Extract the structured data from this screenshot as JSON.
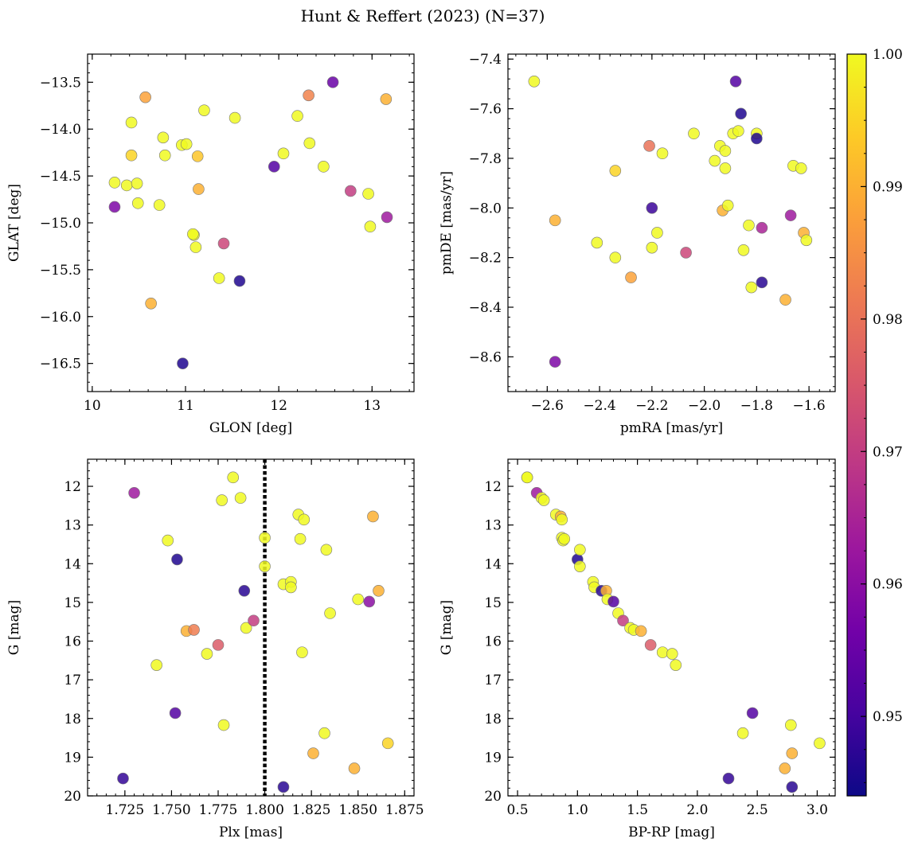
{
  "chart_data": {
    "title": "Hunt & Reffert (2023) (N=37)",
    "colorbar": {
      "range": [
        0.944,
        1.0
      ],
      "ticks": [
        0.95,
        0.96,
        0.97,
        0.98,
        0.99,
        1.0
      ],
      "tick_labels": [
        "0.95",
        "0.96",
        "0.97",
        "0.98",
        "0.99",
        "1.00"
      ],
      "colormap": [
        "#0d0887",
        "#46039f",
        "#7201a8",
        "#9c179e",
        "#bd3786",
        "#d8576b",
        "#ed7953",
        "#fb9f3a",
        "#fdca26",
        "#f0f921"
      ]
    },
    "panels": [
      {
        "name": "glon-glat",
        "type": "scatter",
        "xlabel": "GLON [deg]",
        "ylabel": "GLAT [deg]",
        "xlim": [
          9.95,
          13.45
        ],
        "ylim": [
          -16.8,
          -13.2
        ],
        "y_inverted": false,
        "xticks": [
          10,
          11,
          12,
          13
        ],
        "xtick_labels": [
          "10",
          "11",
          "12",
          "13"
        ],
        "yticks": [
          -13.5,
          -14.0,
          -14.5,
          -15.0,
          -15.5,
          -16.0,
          -16.5
        ],
        "ytick_labels": [
          "−13.5",
          "−14.0",
          "−14.5",
          "−15.0",
          "−15.5",
          "−16.0",
          "−16.5"
        ],
        "vline": null,
        "points": [
          [
            10.24,
            -14.57,
            1.0
          ],
          [
            10.24,
            -14.83,
            0.958
          ],
          [
            10.37,
            -14.6,
            1.0
          ],
          [
            10.42,
            -14.28,
            0.995
          ],
          [
            10.42,
            -13.93,
            1.0
          ],
          [
            10.48,
            -14.58,
            1.0
          ],
          [
            10.49,
            -14.79,
            1.0
          ],
          [
            10.57,
            -13.66,
            0.988
          ],
          [
            10.63,
            -15.86,
            0.99
          ],
          [
            10.72,
            -14.81,
            1.0
          ],
          [
            10.76,
            -14.09,
            1.0
          ],
          [
            10.78,
            -14.28,
            1.0
          ],
          [
            10.96,
            -14.17,
            1.0
          ],
          [
            10.97,
            -16.5,
            0.946
          ],
          [
            11.01,
            -14.16,
            1.0
          ],
          [
            11.09,
            -15.13,
            1.0
          ],
          [
            11.11,
            -15.26,
            1.0
          ],
          [
            11.13,
            -14.29,
            0.993
          ],
          [
            11.14,
            -14.64,
            0.99
          ],
          [
            11.2,
            -13.8,
            1.0
          ],
          [
            11.36,
            -15.59,
            1.0
          ],
          [
            11.41,
            -15.22,
            0.972
          ],
          [
            11.53,
            -13.88,
            1.0
          ],
          [
            11.58,
            -15.62,
            0.946
          ],
          [
            11.95,
            -14.4,
            0.952
          ],
          [
            12.05,
            -14.26,
            1.0
          ],
          [
            12.2,
            -13.86,
            1.0
          ],
          [
            12.32,
            -13.64,
            0.983
          ],
          [
            12.33,
            -14.15,
            1.0
          ],
          [
            12.48,
            -14.4,
            1.0
          ],
          [
            12.58,
            -13.5,
            0.955
          ],
          [
            12.77,
            -14.66,
            0.97
          ],
          [
            12.96,
            -14.69,
            1.0
          ],
          [
            12.98,
            -15.04,
            1.0
          ],
          [
            13.15,
            -13.68,
            0.99
          ],
          [
            13.16,
            -14.94,
            0.963
          ],
          [
            11.08,
            -15.12,
            1.0
          ]
        ]
      },
      {
        "name": "pmra-pmde",
        "type": "scatter",
        "xlabel": "pmRA [mas/yr]",
        "ylabel": "pmDE [mas/yr]",
        "xlim": [
          -2.75,
          -1.5
        ],
        "ylim": [
          -8.74,
          -7.38
        ],
        "y_inverted": false,
        "xticks": [
          -2.6,
          -2.4,
          -2.2,
          -2.0,
          -1.8,
          -1.6
        ],
        "xtick_labels": [
          "−2.6",
          "−2.4",
          "−2.2",
          "−2.0",
          "−1.8",
          "−1.6"
        ],
        "yticks": [
          -7.4,
          -7.6,
          -7.8,
          -8.0,
          -8.2,
          -8.4,
          -8.6
        ],
        "ytick_labels": [
          "−7.4",
          "−7.6",
          "−7.8",
          "−8.0",
          "−8.2",
          "−8.4",
          "−8.6"
        ],
        "vline": null,
        "points": [
          [
            -2.65,
            -7.49,
            1.0
          ],
          [
            -2.57,
            -8.05,
            0.99
          ],
          [
            -2.57,
            -8.62,
            0.958
          ],
          [
            -2.41,
            -8.14,
            1.0
          ],
          [
            -2.34,
            -7.85,
            0.995
          ],
          [
            -2.34,
            -8.2,
            1.0
          ],
          [
            -2.28,
            -8.28,
            0.988
          ],
          [
            -2.21,
            -7.75,
            0.98
          ],
          [
            -2.2,
            -8.16,
            1.0
          ],
          [
            -2.2,
            -8.0,
            0.949
          ],
          [
            -2.18,
            -8.1,
            1.0
          ],
          [
            -2.16,
            -7.78,
            1.0
          ],
          [
            -2.07,
            -8.18,
            0.972
          ],
          [
            -2.04,
            -7.7,
            1.0
          ],
          [
            -1.96,
            -7.81,
            1.0
          ],
          [
            -1.94,
            -7.75,
            1.0
          ],
          [
            -1.93,
            -8.01,
            0.99
          ],
          [
            -1.92,
            -7.77,
            1.0
          ],
          [
            -1.92,
            -7.84,
            1.0
          ],
          [
            -1.91,
            -7.99,
            1.0
          ],
          [
            -1.89,
            -7.7,
            1.0
          ],
          [
            -1.88,
            -7.49,
            0.952
          ],
          [
            -1.87,
            -7.69,
            1.0
          ],
          [
            -1.86,
            -7.62,
            0.946
          ],
          [
            -1.85,
            -8.17,
            1.0
          ],
          [
            -1.83,
            -8.07,
            1.0
          ],
          [
            -1.82,
            -8.32,
            1.0
          ],
          [
            -1.8,
            -7.7,
            1.0
          ],
          [
            -1.8,
            -7.72,
            0.946
          ],
          [
            -1.78,
            -8.08,
            0.965
          ],
          [
            -1.78,
            -8.3,
            0.947
          ],
          [
            -1.69,
            -8.37,
            0.99
          ],
          [
            -1.67,
            -8.03,
            0.963
          ],
          [
            -1.66,
            -7.83,
            1.0
          ],
          [
            -1.63,
            -7.84,
            1.0
          ],
          [
            -1.62,
            -8.1,
            0.99
          ],
          [
            -1.61,
            -8.13,
            1.0
          ]
        ]
      },
      {
        "name": "plx-g",
        "type": "scatter",
        "xlabel": "Plx [mas]",
        "ylabel": "G [mag]",
        "xlim": [
          1.705,
          1.88
        ],
        "ylim": [
          20.0,
          11.3
        ],
        "y_inverted": true,
        "xticks": [
          1.725,
          1.75,
          1.775,
          1.8,
          1.825,
          1.85,
          1.875
        ],
        "xtick_labels": [
          "1.725",
          "1.750",
          "1.775",
          "1.800",
          "1.825",
          "1.850",
          "1.875"
        ],
        "yticks": [
          12,
          13,
          14,
          15,
          16,
          17,
          18,
          19,
          20
        ],
        "ytick_labels": [
          "12",
          "13",
          "14",
          "15",
          "16",
          "17",
          "18",
          "19",
          "20"
        ],
        "vline": 1.8,
        "points": [
          [
            1.724,
            19.55,
            0.948
          ],
          [
            1.73,
            12.17,
            0.963
          ],
          [
            1.742,
            16.62,
            1.0
          ],
          [
            1.748,
            13.4,
            1.0
          ],
          [
            1.752,
            17.86,
            0.952
          ],
          [
            1.753,
            13.89,
            0.946
          ],
          [
            1.758,
            15.74,
            0.99
          ],
          [
            1.762,
            15.71,
            0.982
          ],
          [
            1.769,
            16.33,
            1.0
          ],
          [
            1.775,
            16.1,
            0.976
          ],
          [
            1.777,
            12.36,
            1.0
          ],
          [
            1.778,
            18.17,
            1.0
          ],
          [
            1.783,
            11.77,
            1.0
          ],
          [
            1.787,
            12.3,
            1.0
          ],
          [
            1.789,
            14.7,
            0.947
          ],
          [
            1.79,
            15.66,
            1.0
          ],
          [
            1.794,
            15.47,
            0.97
          ],
          [
            1.8,
            13.33,
            1.0
          ],
          [
            1.8,
            14.07,
            1.0
          ],
          [
            1.81,
            19.77,
            0.947
          ],
          [
            1.81,
            14.53,
            1.0
          ],
          [
            1.814,
            14.47,
            1.0
          ],
          [
            1.814,
            14.61,
            1.0
          ],
          [
            1.818,
            12.73,
            1.0
          ],
          [
            1.819,
            13.36,
            1.0
          ],
          [
            1.821,
            12.86,
            1.0
          ],
          [
            1.82,
            16.29,
            1.0
          ],
          [
            1.826,
            18.9,
            0.99
          ],
          [
            1.832,
            18.38,
            1.0
          ],
          [
            1.833,
            13.64,
            1.0
          ],
          [
            1.835,
            15.28,
            1.0
          ],
          [
            1.848,
            19.29,
            0.99
          ],
          [
            1.85,
            14.92,
            1.0
          ],
          [
            1.856,
            14.98,
            0.96
          ],
          [
            1.858,
            12.78,
            0.99
          ],
          [
            1.861,
            14.7,
            0.99
          ],
          [
            1.866,
            18.64,
            0.995
          ]
        ]
      },
      {
        "name": "bprp-g",
        "type": "scatter",
        "xlabel": "BP-RP [mag]",
        "ylabel": "G [mag]",
        "xlim": [
          0.42,
          3.15
        ],
        "ylim": [
          20.0,
          11.3
        ],
        "y_inverted": true,
        "xticks": [
          0.5,
          1.0,
          1.5,
          2.0,
          2.5,
          3.0
        ],
        "xtick_labels": [
          "0.5",
          "1.0",
          "1.5",
          "2.0",
          "2.5",
          "3.0"
        ],
        "yticks": [
          12,
          13,
          14,
          15,
          16,
          17,
          18,
          19,
          20
        ],
        "ytick_labels": [
          "12",
          "13",
          "14",
          "15",
          "16",
          "17",
          "18",
          "19",
          "20"
        ],
        "vline": null,
        "points": [
          [
            0.58,
            11.77,
            1.0
          ],
          [
            0.66,
            12.17,
            0.963
          ],
          [
            0.7,
            12.3,
            1.0
          ],
          [
            0.72,
            12.36,
            1.0
          ],
          [
            0.82,
            12.73,
            1.0
          ],
          [
            0.86,
            12.78,
            0.99
          ],
          [
            0.87,
            12.86,
            1.0
          ],
          [
            0.87,
            13.33,
            1.0
          ],
          [
            0.88,
            13.4,
            1.0
          ],
          [
            0.89,
            13.36,
            1.0
          ],
          [
            1.0,
            13.89,
            0.946
          ],
          [
            1.02,
            13.64,
            1.0
          ],
          [
            1.02,
            14.07,
            1.0
          ],
          [
            1.13,
            14.47,
            1.0
          ],
          [
            1.14,
            14.61,
            1.0
          ],
          [
            1.2,
            14.7,
            0.947
          ],
          [
            1.24,
            14.7,
            0.99
          ],
          [
            1.25,
            14.92,
            1.0
          ],
          [
            1.3,
            14.98,
            0.952
          ],
          [
            1.34,
            15.28,
            1.0
          ],
          [
            1.38,
            15.47,
            0.97
          ],
          [
            1.44,
            15.66,
            1.0
          ],
          [
            1.47,
            15.71,
            1.0
          ],
          [
            1.53,
            15.74,
            0.99
          ],
          [
            1.61,
            16.1,
            0.976
          ],
          [
            1.71,
            16.29,
            1.0
          ],
          [
            1.79,
            16.33,
            1.0
          ],
          [
            1.82,
            16.62,
            1.0
          ],
          [
            2.26,
            19.55,
            0.948
          ],
          [
            2.38,
            18.38,
            1.0
          ],
          [
            2.46,
            17.86,
            0.952
          ],
          [
            2.73,
            19.29,
            0.99
          ],
          [
            2.78,
            18.17,
            1.0
          ],
          [
            2.79,
            18.9,
            0.99
          ],
          [
            2.79,
            19.77,
            0.947
          ],
          [
            3.02,
            18.64,
            1.0
          ],
          [
            0.58,
            11.77,
            1.0
          ]
        ]
      }
    ]
  }
}
